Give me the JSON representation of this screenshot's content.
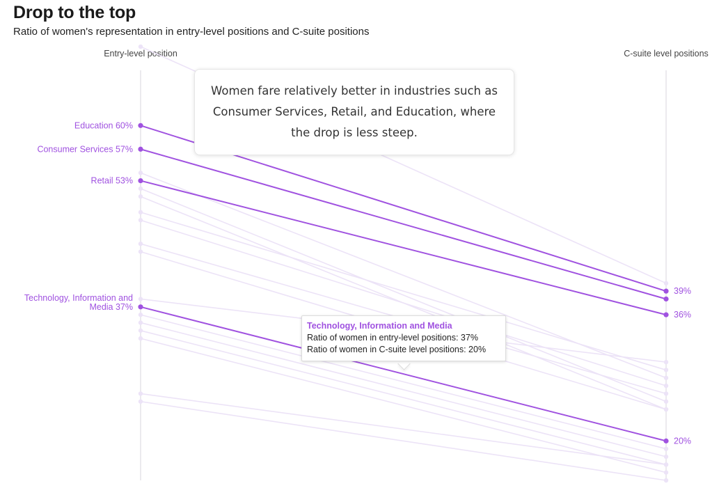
{
  "title": "Drop to the top",
  "subtitle": "Ratio of women's representation in entry-level positions and C-suite positions",
  "colors": {
    "highlight": "#a052e0",
    "faint": "#ece3f7",
    "axis": "#dedbe3",
    "label": "#444444"
  },
  "callout": "Women fare relatively better in industries such as Consumer Services, Retail, and Education, where the drop is less steep.",
  "tooltip": {
    "title": "Technology, Information and Media",
    "line1": "Ratio of women in entry-level positions: 37%",
    "line2": "Ratio of women in C-suite level positions: 20%"
  },
  "chart_data": {
    "type": "slope",
    "axis_left_label": "Entry-level position",
    "axis_right_label": "C-suite level positions",
    "ylim": [
      15,
      67
    ],
    "highlighted": [
      {
        "name": "Education",
        "entry": 60,
        "csuite": 39,
        "left_label": "Education 60%",
        "right_label": "39%"
      },
      {
        "name": "Consumer Services",
        "entry": 57,
        "csuite": 38,
        "left_label": "Consumer Services 57%",
        "right_label": ""
      },
      {
        "name": "Retail",
        "entry": 53,
        "csuite": 36,
        "left_label": "Retail 53%",
        "right_label": "36%"
      },
      {
        "name": "Technology, Information and Media",
        "entry": 37,
        "csuite": 20,
        "left_label_lines": [
          "Technology, Information and",
          "Media 37%"
        ],
        "right_label": "20%"
      }
    ],
    "others": [
      {
        "entry": 70,
        "csuite": 40
      },
      {
        "entry": 54,
        "csuite": 28
      },
      {
        "entry": 52,
        "csuite": 25
      },
      {
        "entry": 51,
        "csuite": 24
      },
      {
        "entry": 49,
        "csuite": 29
      },
      {
        "entry": 48,
        "csuite": 27
      },
      {
        "entry": 45,
        "csuite": 26
      },
      {
        "entry": 44,
        "csuite": 24
      },
      {
        "entry": 38,
        "csuite": 30
      },
      {
        "entry": 36,
        "csuite": 19
      },
      {
        "entry": 35,
        "csuite": 18
      },
      {
        "entry": 34,
        "csuite": 17
      },
      {
        "entry": 33,
        "csuite": 16
      },
      {
        "entry": 26,
        "csuite": 17
      },
      {
        "entry": 25,
        "csuite": 15
      }
    ]
  }
}
